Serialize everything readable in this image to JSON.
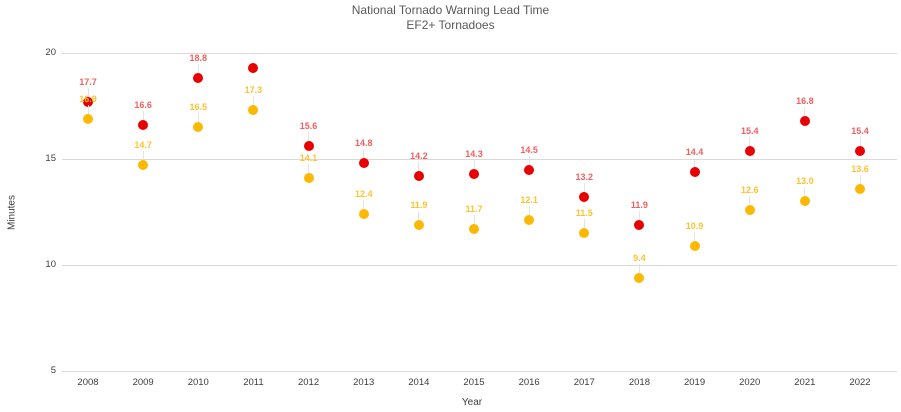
{
  "chart_data": {
    "type": "scatter",
    "title": "National Tornado Warning Lead Time",
    "subtitle": "EF2+ Tornadoes",
    "xlabel": "Year",
    "ylabel": "Minutes",
    "categories": [
      "2008",
      "2009",
      "2010",
      "2011",
      "2012",
      "2013",
      "2014",
      "2015",
      "2016",
      "2017",
      "2018",
      "2019",
      "2020",
      "2021",
      "2022"
    ],
    "ylim": [
      5,
      20
    ],
    "yticks": [
      20,
      15,
      10,
      5
    ],
    "grid": true,
    "legend_position": "none",
    "series": [
      {
        "name": "red-series",
        "color": "#e80000",
        "label_color": "#f25f5f",
        "values": [
          17.7,
          16.6,
          18.8,
          19.3,
          15.6,
          14.8,
          14.2,
          14.3,
          14.5,
          13.2,
          11.9,
          14.4,
          15.4,
          16.8,
          15.4
        ],
        "labels": [
          "17.7",
          "16.6",
          "18.8",
          "",
          "15.6",
          "14.8",
          "14.2",
          "14.3",
          "14.5",
          "13.2",
          "11.9",
          "14.4",
          "15.4",
          "16.8",
          "15.4"
        ]
      },
      {
        "name": "gold-series",
        "color": "#fcb802",
        "label_color": "#fcc32d",
        "values": [
          16.9,
          14.7,
          16.5,
          17.3,
          14.1,
          12.4,
          11.9,
          11.7,
          12.1,
          11.5,
          9.4,
          10.9,
          12.6,
          13.0,
          13.6
        ],
        "labels": [
          "16.9",
          "14.7",
          "16.5",
          "17.3",
          "14.1",
          "12.4",
          "11.9",
          "11.7",
          "12.1",
          "11.5",
          "9.4",
          "10.9",
          "12.6",
          "13.0",
          "13.6"
        ]
      }
    ]
  }
}
